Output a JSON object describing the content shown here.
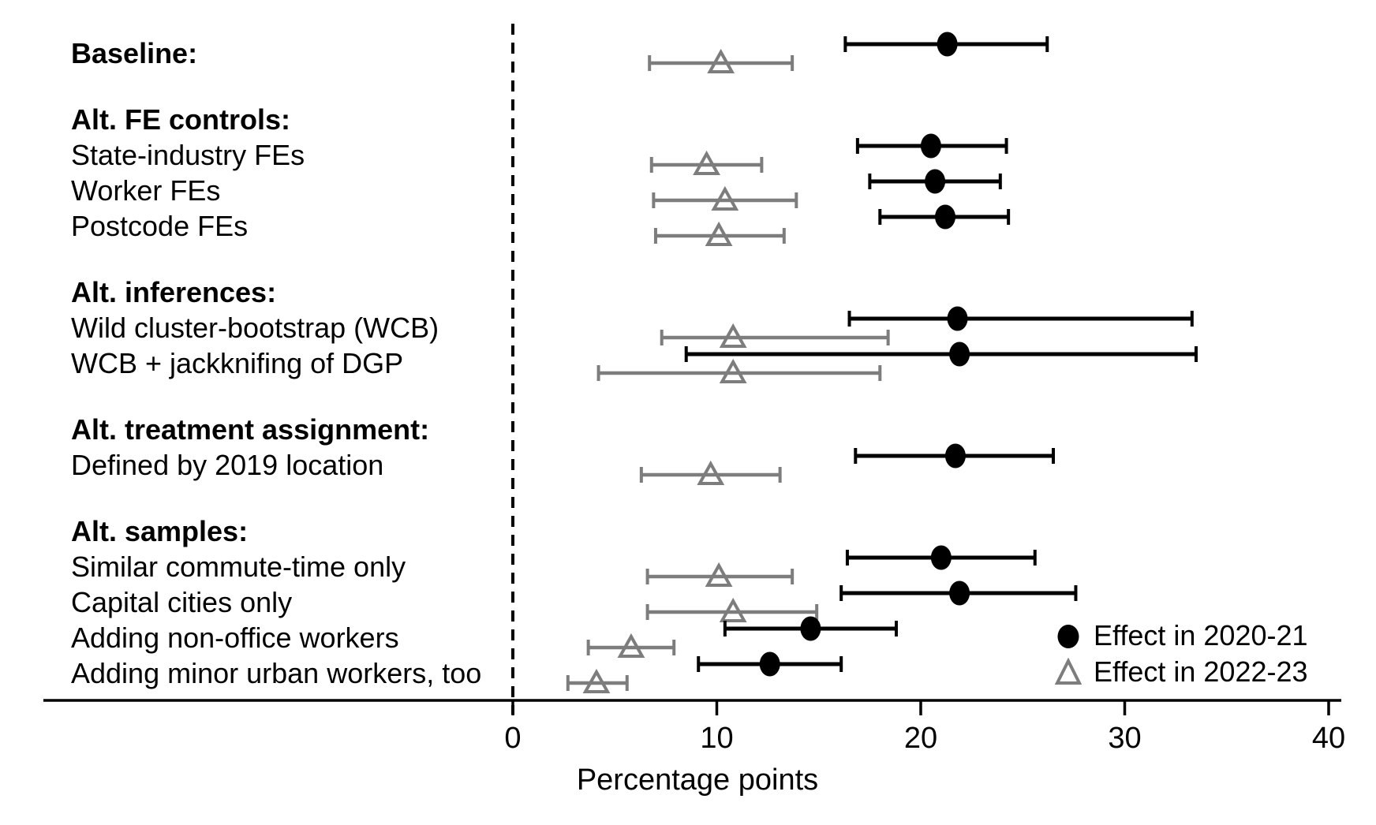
{
  "figure": {
    "background": "#ffffff"
  },
  "chart_data": {
    "type": "scatter",
    "subtype": "forest-plot",
    "title": "",
    "xlabel": "Percentage points",
    "x_ticks": [
      0,
      10,
      20,
      30,
      40
    ],
    "xlim": [
      -23,
      41
    ],
    "zero_reference_line": 0,
    "grid": false,
    "legend_position": "bottom-right-inside",
    "colors": {
      "effect_2020_21": "#000000",
      "effect_2022_23": "#7d7d7d",
      "axis": "#000000",
      "background": "#ffffff"
    },
    "legend": [
      {
        "label": "Effect in 2020-21",
        "marker": "filled-circle-icon",
        "color": "#000000"
      },
      {
        "label": "Effect in 2022-23",
        "marker": "open-triangle-icon",
        "color": "#7d7d7d"
      }
    ],
    "rows": [
      {
        "label": "Baseline:",
        "style": "header",
        "effect_2020_21": {
          "est": 21.3,
          "lo": 16.3,
          "hi": 26.2
        },
        "effect_2022_23": {
          "est": 10.2,
          "lo": 6.7,
          "hi": 13.7
        }
      },
      {
        "label": "Alt. FE controls:",
        "style": "header"
      },
      {
        "label": "State-industry FEs",
        "style": "item",
        "effect_2020_21": {
          "est": 20.5,
          "lo": 16.9,
          "hi": 24.2
        },
        "effect_2022_23": {
          "est": 9.5,
          "lo": 6.8,
          "hi": 12.2
        }
      },
      {
        "label": "Worker FEs",
        "style": "item",
        "effect_2020_21": {
          "est": 20.7,
          "lo": 17.5,
          "hi": 23.9
        },
        "effect_2022_23": {
          "est": 10.4,
          "lo": 6.9,
          "hi": 13.9
        }
      },
      {
        "label": "Postcode FEs",
        "style": "item",
        "effect_2020_21": {
          "est": 21.2,
          "lo": 18.0,
          "hi": 24.3
        },
        "effect_2022_23": {
          "est": 10.1,
          "lo": 7.0,
          "hi": 13.3
        }
      },
      {
        "label": "Alt. inferences:",
        "style": "header"
      },
      {
        "label": "Wild cluster-bootstrap (WCB)",
        "style": "item",
        "effect_2020_21": {
          "est": 21.8,
          "lo": 16.5,
          "hi": 33.3
        },
        "effect_2022_23": {
          "est": 10.8,
          "lo": 7.3,
          "hi": 18.4
        }
      },
      {
        "label": "WCB + jackknifing of DGP",
        "style": "item",
        "effect_2020_21": {
          "est": 21.9,
          "lo": 8.5,
          "hi": 33.5
        },
        "effect_2022_23": {
          "est": 10.8,
          "lo": 4.2,
          "hi": 18.0
        }
      },
      {
        "label": "Alt. treatment assignment:",
        "style": "header"
      },
      {
        "label": "Defined by 2019 location",
        "style": "item",
        "effect_2020_21": {
          "est": 21.7,
          "lo": 16.8,
          "hi": 26.5
        },
        "effect_2022_23": {
          "est": 9.7,
          "lo": 6.3,
          "hi": 13.1
        }
      },
      {
        "label": "Alt. samples:",
        "style": "header"
      },
      {
        "label": "Similar commute-time only",
        "style": "item",
        "effect_2020_21": {
          "est": 21.0,
          "lo": 16.4,
          "hi": 25.6
        },
        "effect_2022_23": {
          "est": 10.1,
          "lo": 6.6,
          "hi": 13.7
        }
      },
      {
        "label": "Capital cities only",
        "style": "item",
        "effect_2020_21": {
          "est": 21.9,
          "lo": 16.1,
          "hi": 27.6
        },
        "effect_2022_23": {
          "est": 10.8,
          "lo": 6.6,
          "hi": 14.9
        }
      },
      {
        "label": "Adding non-office workers",
        "style": "item",
        "effect_2020_21": {
          "est": 14.6,
          "lo": 10.4,
          "hi": 18.8
        },
        "effect_2022_23": {
          "est": 5.8,
          "lo": 3.7,
          "hi": 7.9
        }
      },
      {
        "label": "Adding minor urban workers, too",
        "style": "item",
        "effect_2020_21": {
          "est": 12.6,
          "lo": 9.1,
          "hi": 16.1
        },
        "effect_2022_23": {
          "est": 4.1,
          "lo": 2.7,
          "hi": 5.6
        }
      }
    ]
  }
}
